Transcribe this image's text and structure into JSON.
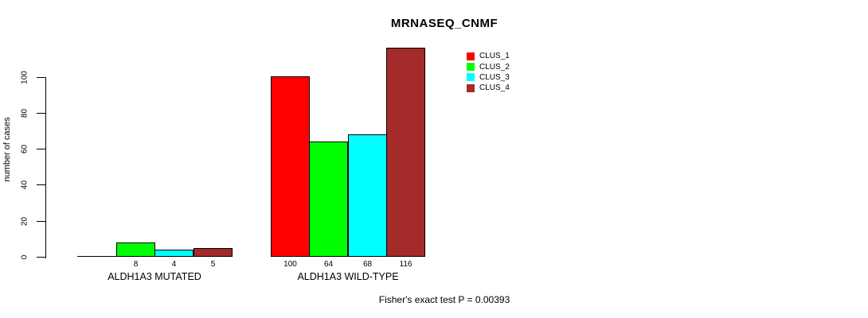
{
  "chart_data": {
    "type": "bar",
    "title": "MRNASEQ_CNMF",
    "ylabel": "number of cases",
    "xlabel": "",
    "ylim": [
      0,
      100
    ],
    "yticks": [
      0,
      20,
      40,
      60,
      80,
      100
    ],
    "grid": "off",
    "legend_position": "top-right",
    "categories": [
      "ALDH1A3 MUTATED",
      "ALDH1A3 WILD-TYPE"
    ],
    "series": [
      {
        "name": "CLUS_1",
        "color": "#FF0000",
        "values": [
          0,
          100
        ]
      },
      {
        "name": "CLUS_2",
        "color": "#00FF00",
        "values": [
          8,
          64
        ]
      },
      {
        "name": "CLUS_3",
        "color": "#00FFFF",
        "values": [
          4,
          68
        ]
      },
      {
        "name": "CLUS_4",
        "color": "#A52A2A",
        "values": [
          5,
          116
        ]
      }
    ],
    "value_labels": [
      [
        "",
        "8",
        "4",
        "5"
      ],
      [
        "100",
        "64",
        "68",
        "116"
      ]
    ],
    "legend": [
      {
        "label": "CLUS_1",
        "color": "#FF0000"
      },
      {
        "label": "CLUS_2",
        "color": "#00FF00"
      },
      {
        "label": "CLUS_3",
        "color": "#00FFFF"
      },
      {
        "label": "CLUS_4",
        "color": "#A52A2A"
      }
    ],
    "annotation": "Fisher's exact test P = 0.00393"
  }
}
